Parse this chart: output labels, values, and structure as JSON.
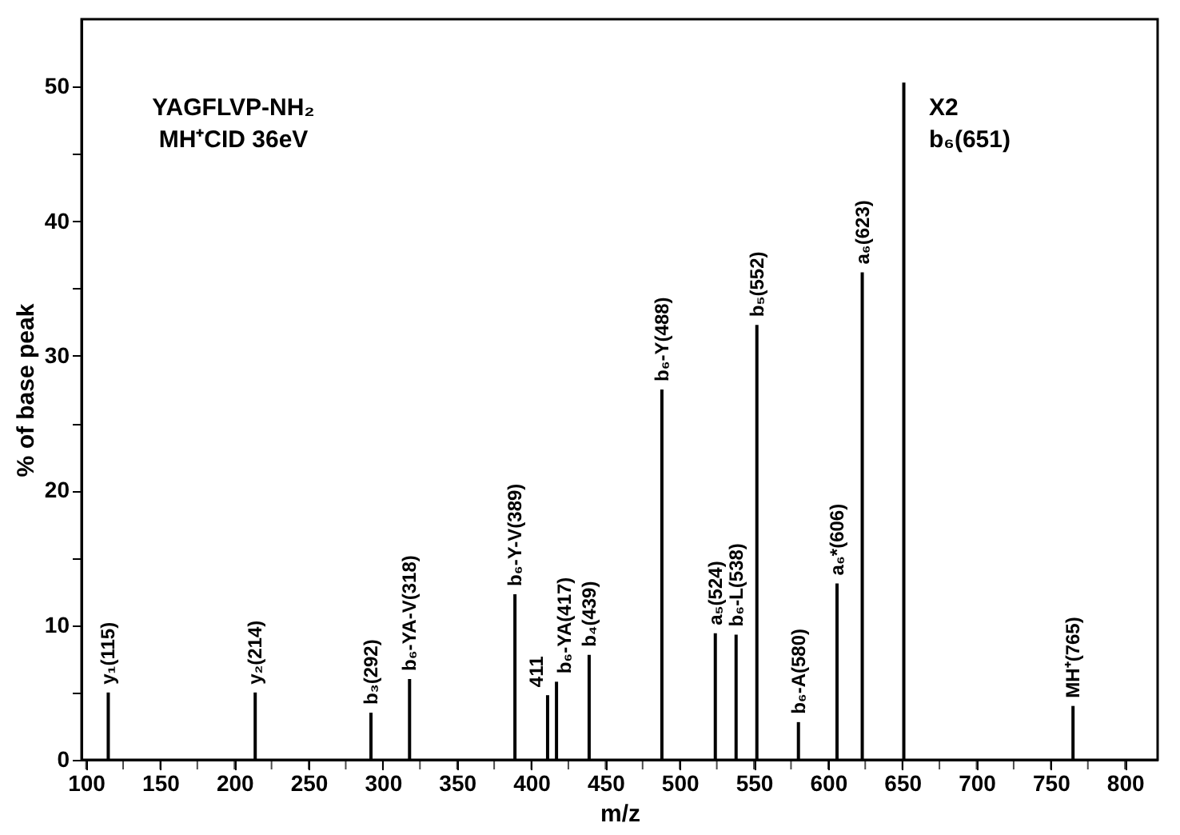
{
  "chart_data": {
    "type": "bar",
    "xlabel": "m/z",
    "ylabel": "% of base peak",
    "x": [
      115,
      214,
      292,
      318,
      389,
      411,
      417,
      439,
      488,
      524,
      538,
      552,
      580,
      606,
      623,
      651,
      765
    ],
    "values": [
      5.0,
      5.0,
      3.5,
      6.0,
      12.3,
      4.8,
      5.8,
      7.8,
      27.5,
      9.4,
      9.3,
      32.3,
      2.8,
      13.1,
      36.2,
      50.3,
      4.0
    ],
    "color": "#000000",
    "xlim": [
      97,
      822
    ],
    "xticks": [
      100,
      {
        "value": 125,
        "label": null
      },
      150,
      {
        "value": 175,
        "label": null
      },
      200,
      {
        "value": 225,
        "label": null
      },
      250,
      {
        "value": 275,
        "label": null
      },
      300,
      {
        "value": 325,
        "label": null
      },
      350,
      {
        "value": 375,
        "label": null
      },
      400,
      {
        "value": 425,
        "label": null
      },
      450,
      {
        "value": 475,
        "label": null
      },
      500,
      {
        "value": 525,
        "label": null
      },
      550,
      {
        "value": 575,
        "label": null
      },
      600,
      {
        "value": 625,
        "label": null
      },
      650,
      {
        "value": 675,
        "label": null
      },
      700,
      {
        "value": 725,
        "label": null
      },
      750,
      {
        "value": 775,
        "label": null
      },
      800
    ],
    "ylim": [
      0,
      55
    ],
    "yticks": [
      0,
      {
        "value": 5,
        "label": null
      },
      10,
      {
        "value": 15,
        "label": null
      },
      20,
      {
        "value": 25,
        "label": null
      },
      30,
      {
        "value": 35,
        "label": null
      },
      40,
      {
        "value": 45,
        "label": null
      },
      50
    ],
    "annotations": [
      "YAGFLVP-NH₂",
      "MH⁺CID 36eV",
      "X2",
      "b₆(651)",
      {
        "text": "y₁(115)",
        "x": 115,
        "y": 5.0
      },
      {
        "text": "y₂(214)",
        "x": 214,
        "y": 5.0
      },
      {
        "text": "b₃(292)",
        "x": 292,
        "y": 3.5
      },
      {
        "text": "b₆-YA-V(318)",
        "x": 318,
        "y": 6.0
      },
      {
        "text": "b₆-Y-V(389)",
        "x": 389,
        "y": 12.3
      },
      {
        "text": "411",
        "x": 411,
        "y": 4.8
      },
      {
        "text": "b₆-YA(417)",
        "x": 417,
        "y": 5.8
      },
      {
        "text": "b₄(439)",
        "x": 439,
        "y": 7.8
      },
      {
        "text": "b₆-Y(488)",
        "x": 488,
        "y": 27.5
      },
      {
        "text": "a₅(524)",
        "x": 524,
        "y": 9.4
      },
      {
        "text": "b₆-L(538)",
        "x": 538,
        "y": 9.3
      },
      {
        "text": "b₅(552)",
        "x": 552,
        "y": 32.3
      },
      {
        "text": "b₆-A(580)",
        "x": 580,
        "y": 2.8
      },
      {
        "text": "a₆*(606)",
        "x": 606,
        "y": 13.1
      },
      {
        "text": "a₆(623)",
        "x": 623,
        "y": 36.2
      },
      {
        "text": "MH⁺(765)",
        "x": 765,
        "y": 4.0
      }
    ],
    "grid": false
  }
}
